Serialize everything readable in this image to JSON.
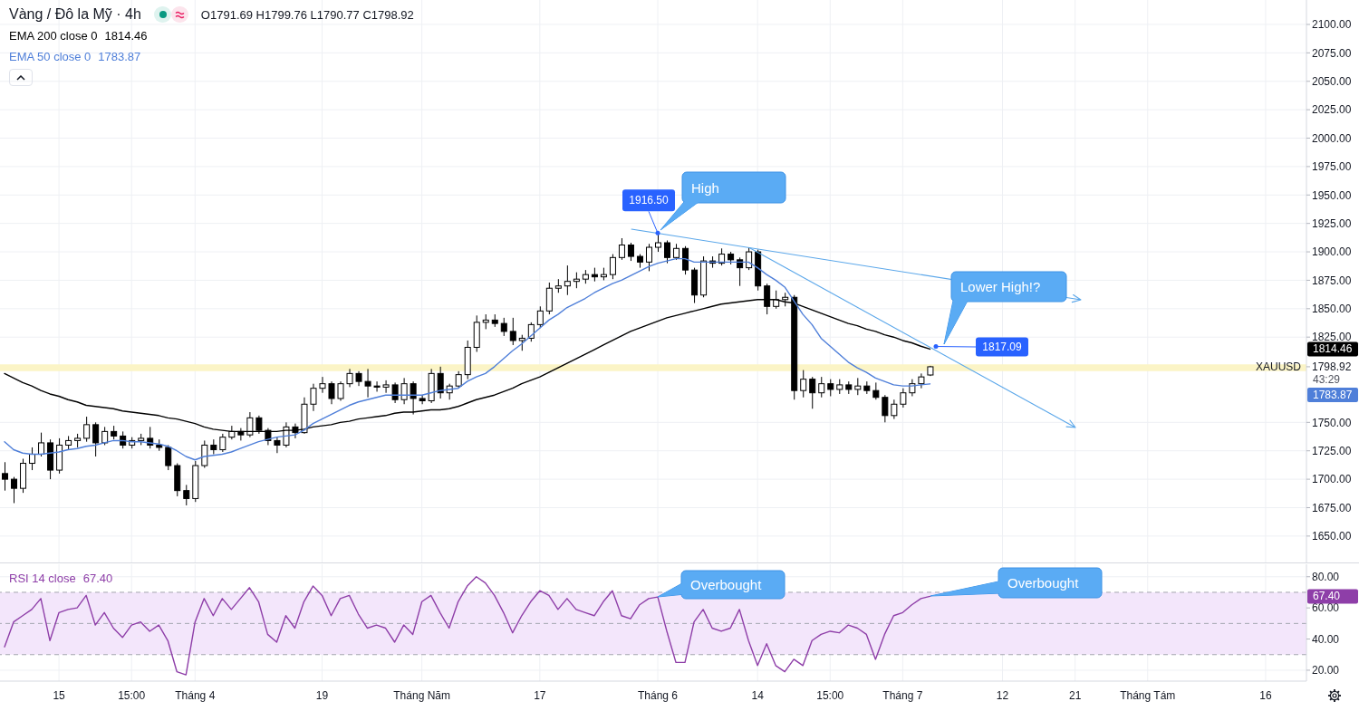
{
  "chart_data": [
    {
      "type": "candlestick",
      "title": "Vàng / Đô la Mỹ · 4h",
      "subtitle": "O1791.69 H1799.76 L1790.77 C1798.92",
      "color": "#000000",
      "categories": [
        null,
        null,
        null,
        null,
        null,
        null,
        "15",
        null,
        null,
        null,
        null,
        null,
        null,
        null,
        "15:00",
        null,
        null,
        null,
        null,
        null,
        null,
        "Tháng 4",
        null,
        null,
        null,
        null,
        null,
        null,
        null,
        null,
        null,
        null,
        null,
        null,
        null,
        "19",
        null,
        null,
        null,
        null,
        null,
        null,
        null,
        null,
        null,
        null,
        "Tháng Năm",
        null,
        null,
        null,
        null,
        null,
        null,
        null,
        null,
        null,
        null,
        null,
        null,
        "17",
        null,
        null,
        null,
        null,
        null,
        null,
        null,
        null,
        null,
        null,
        null,
        null,
        "Tháng 6",
        null,
        null,
        null,
        null,
        null,
        null,
        null,
        null,
        null,
        null,
        "14",
        null,
        null,
        null,
        null,
        null,
        null,
        null,
        "15:00",
        null,
        null,
        null,
        null,
        null,
        null,
        null,
        "Tháng 7",
        null,
        null,
        null,
        null,
        null,
        null,
        null,
        null,
        null,
        null,
        "12",
        null,
        null,
        null,
        null,
        null,
        null,
        null,
        "21",
        null,
        null,
        null,
        null,
        null,
        null,
        null,
        "Tháng Tám",
        null,
        null,
        null,
        null,
        null,
        null,
        null,
        null,
        null,
        null,
        null,
        null,
        "16",
        null,
        null,
        null,
        null
      ],
      "ohlc": [
        [
          1705,
          1715,
          1690,
          1700
        ],
        [
          1700,
          1702,
          1679,
          1692
        ],
        [
          1692,
          1718,
          1688,
          1714
        ],
        [
          1714,
          1728,
          1708,
          1722
        ],
        [
          1722,
          1741,
          1720,
          1732
        ],
        [
          1732,
          1735,
          1700,
          1708
        ],
        [
          1708,
          1736,
          1705,
          1730
        ],
        [
          1730,
          1738,
          1726,
          1734
        ],
        [
          1734,
          1740,
          1728,
          1736
        ],
        [
          1736,
          1755,
          1733,
          1748
        ],
        [
          1748,
          1750,
          1720,
          1732
        ],
        [
          1732,
          1746,
          1730,
          1742
        ],
        [
          1742,
          1747,
          1735,
          1738
        ],
        [
          1738,
          1742,
          1727,
          1730
        ],
        [
          1730,
          1737,
          1727,
          1734
        ],
        [
          1734,
          1740,
          1730,
          1736
        ],
        [
          1736,
          1746,
          1727,
          1730
        ],
        [
          1730,
          1735,
          1725,
          1728
        ],
        [
          1728,
          1730,
          1708,
          1712
        ],
        [
          1712,
          1714,
          1685,
          1690
        ],
        [
          1690,
          1695,
          1677,
          1683
        ],
        [
          1683,
          1716,
          1680,
          1712
        ],
        [
          1712,
          1734,
          1710,
          1730
        ],
        [
          1730,
          1735,
          1722,
          1726
        ],
        [
          1726,
          1740,
          1724,
          1737
        ],
        [
          1737,
          1747,
          1735,
          1742
        ],
        [
          1742,
          1745,
          1734,
          1739
        ],
        [
          1739,
          1759,
          1737,
          1754
        ],
        [
          1754,
          1756,
          1740,
          1743
        ],
        [
          1743,
          1745,
          1730,
          1734
        ],
        [
          1734,
          1737,
          1723,
          1730
        ],
        [
          1730,
          1750,
          1728,
          1746
        ],
        [
          1746,
          1749,
          1736,
          1741
        ],
        [
          1741,
          1772,
          1740,
          1766
        ],
        [
          1766,
          1784,
          1760,
          1780
        ],
        [
          1780,
          1790,
          1776,
          1784
        ],
        [
          1784,
          1786,
          1766,
          1771
        ],
        [
          1771,
          1786,
          1769,
          1784
        ],
        [
          1784,
          1797,
          1781,
          1793
        ],
        [
          1793,
          1795,
          1782,
          1786
        ],
        [
          1786,
          1797,
          1772,
          1782
        ],
        [
          1782,
          1786,
          1777,
          1781
        ],
        [
          1781,
          1787,
          1776,
          1783
        ],
        [
          1783,
          1785,
          1767,
          1770
        ],
        [
          1770,
          1789,
          1766,
          1784
        ],
        [
          1784,
          1786,
          1757,
          1771
        ],
        [
          1771,
          1774,
          1766,
          1769
        ],
        [
          1769,
          1797,
          1767,
          1793
        ],
        [
          1793,
          1799,
          1771,
          1776
        ],
        [
          1776,
          1784,
          1770,
          1782
        ],
        [
          1782,
          1795,
          1780,
          1792
        ],
        [
          1792,
          1822,
          1788,
          1816
        ],
        [
          1816,
          1844,
          1812,
          1838
        ],
        [
          1838,
          1845,
          1832,
          1840
        ],
        [
          1840,
          1845,
          1834,
          1837
        ],
        [
          1837,
          1842,
          1826,
          1830
        ],
        [
          1830,
          1842,
          1818,
          1822
        ],
        [
          1822,
          1827,
          1813,
          1824
        ],
        [
          1824,
          1838,
          1821,
          1836
        ],
        [
          1836,
          1852,
          1833,
          1848
        ],
        [
          1848,
          1873,
          1845,
          1868
        ],
        [
          1868,
          1876,
          1864,
          1870
        ],
        [
          1870,
          1888,
          1862,
          1874
        ],
        [
          1874,
          1882,
          1868,
          1876
        ],
        [
          1876,
          1884,
          1872,
          1880
        ],
        [
          1880,
          1886,
          1874,
          1878
        ],
        [
          1878,
          1886,
          1875,
          1880
        ],
        [
          1880,
          1898,
          1876,
          1895
        ],
        [
          1895,
          1912,
          1893,
          1906
        ],
        [
          1906,
          1908,
          1892,
          1896
        ],
        [
          1896,
          1898,
          1886,
          1891
        ],
        [
          1891,
          1907,
          1883,
          1904
        ],
        [
          1904,
          1916.5,
          1900,
          1908
        ],
        [
          1908,
          1910,
          1890,
          1895
        ],
        [
          1895,
          1907,
          1893,
          1903
        ],
        [
          1903,
          1905,
          1880,
          1884
        ],
        [
          1884,
          1886,
          1855,
          1862
        ],
        [
          1862,
          1896,
          1860,
          1892
        ],
        [
          1892,
          1896,
          1886,
          1890
        ],
        [
          1890,
          1903,
          1888,
          1898
        ],
        [
          1898,
          1900,
          1889,
          1893
        ],
        [
          1893,
          1895,
          1870,
          1886
        ],
        [
          1886,
          1904,
          1884,
          1900
        ],
        [
          1900,
          1902,
          1866,
          1870
        ],
        [
          1870,
          1872,
          1845,
          1852
        ],
        [
          1852,
          1866,
          1850,
          1858
        ],
        [
          1858,
          1864,
          1852,
          1860
        ],
        [
          1860,
          1862,
          1770,
          1778
        ],
        [
          1778,
          1796,
          1772,
          1788
        ],
        [
          1788,
          1790,
          1762,
          1776
        ],
        [
          1776,
          1790,
          1772,
          1784
        ],
        [
          1784,
          1788,
          1773,
          1779
        ],
        [
          1779,
          1788,
          1775,
          1783
        ],
        [
          1783,
          1786,
          1775,
          1779
        ],
        [
          1779,
          1789,
          1774,
          1782
        ],
        [
          1782,
          1786,
          1775,
          1778
        ],
        [
          1778,
          1785,
          1770,
          1772
        ],
        [
          1772,
          1774,
          1750,
          1756
        ],
        [
          1756,
          1770,
          1753,
          1766
        ],
        [
          1766,
          1780,
          1763,
          1776
        ],
        [
          1776,
          1788,
          1773,
          1784
        ],
        [
          1784,
          1793,
          1780,
          1790
        ],
        [
          1791.69,
          1799.76,
          1790.77,
          1798.92
        ],
        null,
        null,
        null,
        null,
        null,
        null,
        null,
        null,
        null,
        null,
        null,
        null,
        null,
        null,
        null,
        null,
        null,
        null,
        null,
        null,
        null,
        null,
        null,
        null,
        null,
        null,
        null,
        null,
        null,
        null,
        null,
        null,
        null,
        null,
        null,
        null,
        null,
        null,
        null,
        null,
        null
      ],
      "series": [
        {
          "name": "EMA 200 close 0",
          "type": "line",
          "color": "#000000",
          "values": [
            1793,
            1789,
            1785,
            1782,
            1778,
            1775,
            1773,
            1770,
            1768,
            1765,
            1764,
            1763,
            1762,
            1760,
            1759,
            1758,
            1757,
            1756,
            1754,
            1753,
            1751,
            1749,
            1746,
            1744,
            1743,
            1742,
            1742,
            1742,
            1742,
            1742,
            1742,
            1743,
            1743,
            1744,
            1746,
            1747,
            1748,
            1750,
            1751,
            1753,
            1754,
            1755,
            1756,
            1758,
            1759,
            1759,
            1760,
            1761,
            1761,
            1762,
            1764,
            1767,
            1770,
            1772,
            1774,
            1777,
            1780,
            1784,
            1787,
            1790,
            1794,
            1798,
            1802,
            1806,
            1810,
            1814,
            1818,
            1822,
            1826,
            1830,
            1833,
            1836,
            1839,
            1842,
            1844,
            1846,
            1848,
            1850,
            1852,
            1854,
            1855,
            1856,
            1857,
            1858,
            1858,
            1858,
            1856,
            1855,
            1852,
            1849,
            1846,
            1843,
            1840,
            1837,
            1835,
            1832,
            1830,
            1827,
            1825,
            1822,
            1820,
            1817,
            1814.46,
            null,
            null,
            null,
            null,
            null,
            null,
            null,
            null,
            null,
            null,
            null,
            null,
            null,
            null,
            null,
            null,
            null,
            null,
            null,
            null,
            null,
            null,
            null,
            null,
            null,
            null,
            null,
            null,
            null,
            null,
            null,
            null,
            null,
            null,
            null,
            null,
            null,
            null,
            null,
            null,
            null
          ]
        },
        {
          "name": "EMA 50 close 0",
          "type": "line",
          "color": "#4f7fd9",
          "values": [
            1733,
            1726,
            1723,
            1722,
            1722,
            1723,
            1724,
            1726,
            1727,
            1729,
            1730,
            1732,
            1734,
            1734,
            1733,
            1733,
            1732,
            1731,
            1729,
            1725,
            1720,
            1717,
            1720,
            1721,
            1722,
            1724,
            1727,
            1730,
            1733,
            1735,
            1737,
            1738,
            1739,
            1743,
            1749,
            1753,
            1757,
            1761,
            1765,
            1768,
            1770,
            1772,
            1774,
            1774,
            1774,
            1774,
            1774,
            1776,
            1778,
            1779,
            1780,
            1786,
            1790,
            1793,
            1799,
            1806,
            1813,
            1819,
            1826,
            1833,
            1840,
            1845,
            1851,
            1855,
            1859,
            1864,
            1868,
            1872,
            1875,
            1879,
            1883,
            1887,
            1890,
            1892,
            1894,
            1894,
            1891,
            1891,
            1891,
            1891,
            1891,
            1891,
            1891,
            1886,
            1880,
            1875,
            1869,
            1857,
            1845,
            1836,
            1824,
            1817,
            1810,
            1803,
            1798,
            1794,
            1789,
            1786,
            1783,
            1782,
            1782,
            1783,
            1783.87,
            null,
            null,
            null,
            null,
            null,
            null,
            null,
            null,
            null,
            null,
            null,
            null,
            null,
            null,
            null,
            null,
            null,
            null,
            null,
            null,
            null,
            null,
            null,
            null,
            null,
            null,
            null,
            null,
            null,
            null,
            null,
            null,
            null,
            null,
            null,
            null,
            null,
            null,
            null,
            null,
            null
          ]
        }
      ],
      "ylim": [
        1626,
        2121.5
      ],
      "yticks": [
        {
          "value": 1650,
          "label": "1650.00"
        },
        {
          "value": 1675,
          "label": "1675.00"
        },
        {
          "value": 1700,
          "label": "1700.00"
        },
        {
          "value": 1725,
          "label": "1725.00"
        },
        {
          "value": 1750,
          "label": "1750.00"
        },
        {
          "value": 1798.92,
          "label": "1798.92"
        },
        {
          "value": 1825,
          "label": "1825.00"
        },
        {
          "value": 1850,
          "label": "1850.00"
        },
        {
          "value": 1875,
          "label": "1875.00"
        },
        {
          "value": 1900,
          "label": "1900.00"
        },
        {
          "value": 1925,
          "label": "1925.00"
        },
        {
          "value": 1950,
          "label": "1950.00"
        },
        {
          "value": 1975,
          "label": "1975.00"
        },
        {
          "value": 2000,
          "label": "2000.00"
        },
        {
          "value": 2025,
          "label": "2025.00"
        },
        {
          "value": 2050,
          "label": "2050.00"
        },
        {
          "value": 2075,
          "label": "2075.00"
        },
        {
          "value": 2100,
          "label": "2100.00"
        }
      ],
      "tick_labels": "y",
      "grid": true,
      "legend": "top left",
      "bands": [
        {
          "axis": "y",
          "from": 1795,
          "to": 1801,
          "color": "#fbf4c6"
        }
      ],
      "annotations": [
        {
          "text": "1916.50",
          "x": "Tháng 6",
          "y": 1916.5
        },
        "High",
        "Lower High!?",
        "1817.09",
        "1814.46",
        "1783.87",
        "1814.46",
        "XAUUSD",
        "43:29",
        "1783.87"
      ]
    },
    {
      "type": "line",
      "categories": [
        null,
        null,
        null,
        null,
        null,
        null,
        "15",
        null,
        null,
        null,
        null,
        null,
        null,
        null,
        "15:00",
        null,
        null,
        null,
        null,
        null,
        null,
        "Tháng 4",
        null,
        null,
        null,
        null,
        null,
        null,
        null,
        null,
        null,
        null,
        null,
        null,
        null,
        "19",
        null,
        null,
        null,
        null,
        null,
        null,
        null,
        null,
        null,
        null,
        "Tháng Năm",
        null,
        null,
        null,
        null,
        null,
        null,
        null,
        null,
        null,
        null,
        null,
        null,
        "17",
        null,
        null,
        null,
        null,
        null,
        null,
        null,
        null,
        null,
        null,
        null,
        null,
        "Tháng 6",
        null,
        null,
        null,
        null,
        null,
        null,
        null,
        null,
        null,
        null,
        "14",
        null,
        null,
        null,
        null,
        null,
        null,
        null,
        "15:00",
        null,
        null,
        null,
        null,
        null,
        null,
        null,
        "Tháng 7",
        null,
        null,
        null,
        null,
        null,
        null,
        null,
        null,
        null,
        null,
        "12",
        null,
        null,
        null,
        null,
        null,
        null,
        null,
        "21",
        null,
        null,
        null,
        null,
        null,
        null,
        null,
        "Tháng Tám",
        null,
        null,
        null,
        null,
        null,
        null,
        null,
        null,
        null,
        null,
        null,
        null,
        "16",
        null,
        null,
        null,
        null
      ],
      "series": [
        {
          "name": "RSI 14 close",
          "color": "#8e3ea8",
          "values": [
            35,
            51,
            55,
            59,
            66,
            39,
            57,
            59,
            60,
            68,
            49,
            57,
            47,
            41,
            49,
            51,
            45,
            49,
            39,
            19,
            17,
            51,
            66,
            55,
            66,
            59,
            66,
            73,
            64,
            43,
            38,
            55,
            47,
            64,
            74,
            68,
            55,
            66,
            68,
            56,
            47,
            49,
            47,
            38,
            49,
            43,
            64,
            68,
            57,
            47,
            64,
            74,
            80,
            76,
            68,
            57,
            44,
            55,
            64,
            71,
            68,
            59,
            66,
            59,
            57,
            55,
            64,
            71,
            55,
            53,
            62,
            66,
            67,
            45,
            25,
            25,
            51,
            59,
            47,
            45,
            47,
            59,
            39,
            23,
            37,
            23,
            19,
            27,
            23,
            39,
            43,
            45,
            44,
            49,
            47,
            43,
            27,
            43,
            55,
            57,
            62,
            66,
            67.4,
            null,
            null,
            null,
            null,
            null,
            null,
            null,
            null,
            null,
            null,
            null,
            null,
            null,
            null,
            null,
            null,
            null,
            null,
            null,
            null,
            null,
            null,
            null,
            null,
            null,
            null,
            null,
            null,
            null,
            null,
            null,
            null,
            null,
            null,
            null,
            null,
            null,
            null,
            null,
            null,
            null
          ]
        }
      ],
      "ylim": [
        13,
        88
      ],
      "yticks": [
        {
          "value": 20,
          "label": "20.00"
        },
        {
          "value": 40,
          "label": "40.00"
        },
        {
          "value": 60,
          "label": "60.00"
        },
        {
          "value": 80,
          "label": "80.00"
        }
      ],
      "grid": true,
      "legend": "top left",
      "bands": [
        {
          "axis": "y",
          "from": 30,
          "to": 70,
          "color": "#f3e6fb"
        }
      ],
      "ref_lines": [
        {
          "axis": "y",
          "value": 70,
          "line_style": "dashed",
          "color": "#a3a6af"
        },
        {
          "axis": "y",
          "value": 50,
          "line_style": "dashed",
          "color": "#a3a6af"
        },
        {
          "axis": "y",
          "value": 30,
          "line_style": "dashed",
          "color": "#a3a6af"
        }
      ],
      "annotations": [
        "Overbought",
        "Overbought",
        "67.40",
        "67.40"
      ]
    }
  ]
}
